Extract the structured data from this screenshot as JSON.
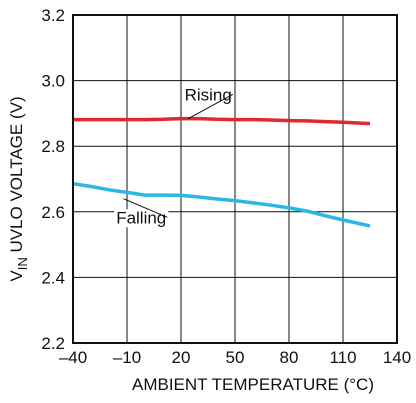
{
  "chart_data": {
    "type": "line",
    "xlabel": "AMBIENT TEMPERATURE (°C)",
    "ylabel_parts": {
      "main": "V",
      "sub": "IN",
      "rest": " UVLO VOLTAGE (V)"
    },
    "xlim": [
      -40,
      140
    ],
    "ylim": [
      2.2,
      3.2
    ],
    "x_ticks": [
      -40,
      -10,
      20,
      50,
      80,
      110,
      140
    ],
    "y_ticks": [
      2.2,
      2.4,
      2.6,
      2.8,
      3.0,
      3.2
    ],
    "x_tick_labels": [
      "–40",
      "–10",
      "20",
      "50",
      "80",
      "110",
      "140"
    ],
    "y_tick_labels": [
      "2.2",
      "2.4",
      "2.6",
      "2.8",
      "3.0",
      "3.2"
    ],
    "grid": true,
    "series": [
      {
        "name": "Rising",
        "color": "#e0282e",
        "x": [
          -40,
          -20,
          0,
          10,
          20,
          30,
          40,
          50,
          60,
          70,
          80,
          90,
          100,
          110,
          125
        ],
        "y": [
          2.881,
          2.881,
          2.881,
          2.882,
          2.884,
          2.884,
          2.882,
          2.881,
          2.881,
          2.88,
          2.878,
          2.877,
          2.875,
          2.873,
          2.869
        ]
      },
      {
        "name": "Falling",
        "color": "#29b7e6",
        "x": [
          -40,
          -30,
          -20,
          -10,
          0,
          10,
          20,
          30,
          40,
          50,
          60,
          70,
          80,
          90,
          100,
          110,
          125
        ],
        "y": [
          2.686,
          2.677,
          2.667,
          2.659,
          2.651,
          2.651,
          2.65,
          2.645,
          2.639,
          2.634,
          2.627,
          2.62,
          2.612,
          2.602,
          2.588,
          2.575,
          2.557
        ]
      }
    ],
    "annotations": [
      {
        "label": "Rising",
        "series": "Rising",
        "text_x": 22,
        "text_y": 2.94,
        "point_x": 24,
        "point_y": 2.884
      },
      {
        "label": "Falling",
        "series": "Falling",
        "text_x": -16,
        "text_y": 2.565,
        "point_x": -12,
        "point_y": 2.64
      }
    ]
  }
}
